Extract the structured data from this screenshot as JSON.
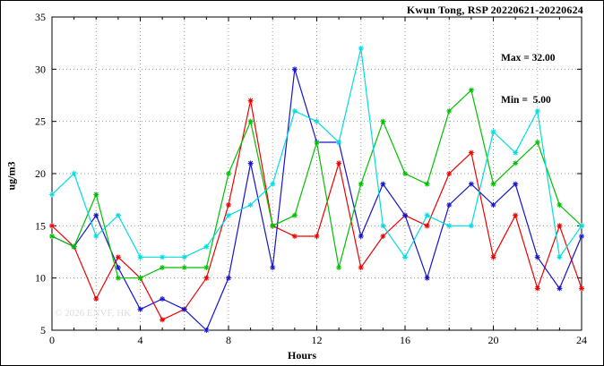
{
  "title": "Kwun Tong, RSP 20220621-20220624",
  "annotation": {
    "max_label": "Max = 32.00",
    "min_label": "Min =  5.00"
  },
  "watermark": "© 2026 ENVF, HK",
  "axes": {
    "x_label": "Hours",
    "y_label": "ug/m3"
  },
  "chart_data": {
    "type": "line",
    "title": "Kwun Tong, RSP 20220621-20220624",
    "xlabel": "Hours",
    "ylabel": "ug/m3",
    "xlim": [
      0,
      24
    ],
    "ylim": [
      5,
      35
    ],
    "xticks": [
      0,
      4,
      8,
      12,
      16,
      20,
      24
    ],
    "yticks": [
      5,
      10,
      15,
      20,
      25,
      30,
      35
    ],
    "x_grid_step": 2,
    "grid": true,
    "legend_position": "none",
    "max": 32.0,
    "min": 5.0,
    "x": [
      0,
      1,
      2,
      3,
      4,
      5,
      6,
      7,
      8,
      9,
      10,
      11,
      12,
      13,
      14,
      15,
      16,
      17,
      18,
      19,
      20,
      21,
      22,
      23,
      24
    ],
    "series": [
      {
        "name": "series-red",
        "color": "#ee0000",
        "values": [
          15,
          13,
          8,
          12,
          10,
          6,
          7,
          10,
          17,
          27,
          15,
          14,
          14,
          21,
          11,
          14,
          16,
          15,
          20,
          22,
          12,
          16,
          9,
          15,
          9
        ]
      },
      {
        "name": "series-blue",
        "color": "#1515cc",
        "values": [
          14,
          13,
          16,
          11,
          7,
          8,
          7,
          5,
          10,
          21,
          11,
          30,
          23,
          23,
          14,
          19,
          16,
          10,
          17,
          19,
          17,
          19,
          12,
          9,
          14
        ]
      },
      {
        "name": "series-green",
        "color": "#00c000",
        "values": [
          14,
          13,
          18,
          10,
          10,
          11,
          11,
          11,
          20,
          25,
          15,
          16,
          23,
          11,
          19,
          25,
          20,
          19,
          26,
          28,
          19,
          21,
          23,
          17,
          15
        ]
      },
      {
        "name": "series-cyan",
        "color": "#00dde0",
        "values": [
          18,
          20,
          14,
          16,
          12,
          12,
          12,
          13,
          16,
          17,
          19,
          26,
          25,
          23,
          32,
          15,
          12,
          16,
          15,
          15,
          24,
          22,
          26,
          12,
          15
        ]
      }
    ]
  }
}
